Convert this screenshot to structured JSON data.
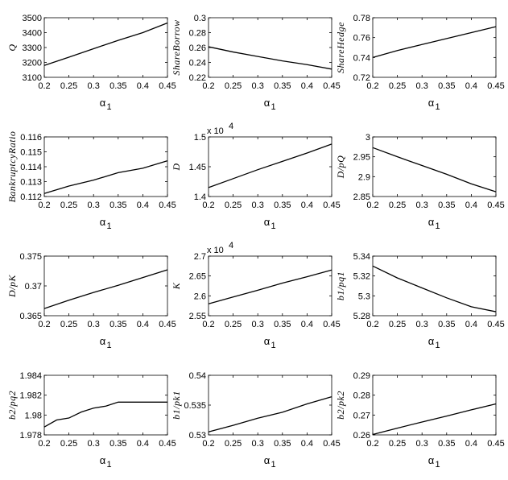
{
  "chart_data": [
    {
      "type": "line",
      "ylabel": "Q",
      "xlabel": "α",
      "xlabel_subscript": "1",
      "x": [
        0.2,
        0.25,
        0.3,
        0.35,
        0.4,
        0.45
      ],
      "values": [
        3180,
        3235,
        3292,
        3348,
        3400,
        3465
      ],
      "color": "#000000",
      "xlim": [
        0.2,
        0.45
      ],
      "xticks": [
        0.2,
        0.25,
        0.3,
        0.35,
        0.4,
        0.45
      ],
      "ylim": [
        3100,
        3500
      ],
      "yticks": [
        3100,
        3200,
        3300,
        3400,
        3500
      ]
    },
    {
      "type": "line",
      "ylabel": "ShareBorrow",
      "xlabel": "α",
      "xlabel_subscript": "1",
      "x": [
        0.2,
        0.25,
        0.3,
        0.35,
        0.4,
        0.45
      ],
      "values": [
        0.261,
        0.254,
        0.248,
        0.242,
        0.237,
        0.231
      ],
      "color": "#000000",
      "xlim": [
        0.2,
        0.45
      ],
      "xticks": [
        0.2,
        0.25,
        0.3,
        0.35,
        0.4,
        0.45
      ],
      "ylim": [
        0.22,
        0.3
      ],
      "yticks": [
        0.22,
        0.24,
        0.26,
        0.28,
        0.3
      ]
    },
    {
      "type": "line",
      "ylabel": "ShareHedge",
      "xlabel": "α",
      "xlabel_subscript": "1",
      "x": [
        0.2,
        0.25,
        0.3,
        0.35,
        0.4,
        0.45
      ],
      "values": [
        0.74,
        0.747,
        0.753,
        0.759,
        0.765,
        0.771
      ],
      "color": "#000000",
      "xlim": [
        0.2,
        0.45
      ],
      "xticks": [
        0.2,
        0.25,
        0.3,
        0.35,
        0.4,
        0.45
      ],
      "ylim": [
        0.72,
        0.78
      ],
      "yticks": [
        0.72,
        0.74,
        0.76,
        0.78
      ]
    },
    {
      "type": "line",
      "ylabel": "BankruptcyRatio",
      "xlabel": "α",
      "xlabel_subscript": "1",
      "x": [
        0.2,
        0.25,
        0.3,
        0.35,
        0.4,
        0.45
      ],
      "values": [
        0.1122,
        0.1127,
        0.1131,
        0.1136,
        0.1139,
        0.1144
      ],
      "color": "#000000",
      "xlim": [
        0.2,
        0.45
      ],
      "xticks": [
        0.2,
        0.25,
        0.3,
        0.35,
        0.4,
        0.45
      ],
      "ylim": [
        0.112,
        0.116
      ],
      "yticks": [
        0.112,
        0.113,
        0.114,
        0.115,
        0.116
      ]
    },
    {
      "type": "line",
      "ylabel": "D",
      "exponent_base": "x 10",
      "exponent_power": "4",
      "xlabel": "α",
      "xlabel_subscript": "1",
      "x": [
        0.2,
        0.25,
        0.3,
        0.35,
        0.4,
        0.45
      ],
      "values": [
        1.415,
        1.43,
        1.445,
        1.459,
        1.473,
        1.488
      ],
      "color": "#000000",
      "xlim": [
        0.2,
        0.45
      ],
      "xticks": [
        0.2,
        0.25,
        0.3,
        0.35,
        0.4,
        0.45
      ],
      "ylim": [
        1.4,
        1.5
      ],
      "yticks": [
        1.4,
        1.45,
        1.5
      ]
    },
    {
      "type": "line",
      "ylabel": "D/pQ",
      "xlabel": "α",
      "xlabel_subscript": "1",
      "x": [
        0.2,
        0.25,
        0.3,
        0.35,
        0.4,
        0.45
      ],
      "values": [
        2.973,
        2.95,
        2.928,
        2.906,
        2.882,
        2.862
      ],
      "color": "#000000",
      "xlim": [
        0.2,
        0.45
      ],
      "xticks": [
        0.2,
        0.25,
        0.3,
        0.35,
        0.4,
        0.45
      ],
      "ylim": [
        2.85,
        3
      ],
      "yticks": [
        2.85,
        2.9,
        2.95,
        3
      ]
    },
    {
      "type": "line",
      "ylabel": "D/pK",
      "xlabel": "α",
      "xlabel_subscript": "1",
      "x": [
        0.2,
        0.25,
        0.3,
        0.35,
        0.4,
        0.45
      ],
      "values": [
        0.3662,
        0.3676,
        0.3689,
        0.3701,
        0.3714,
        0.3727
      ],
      "color": "#000000",
      "xlim": [
        0.2,
        0.45
      ],
      "xticks": [
        0.2,
        0.25,
        0.3,
        0.35,
        0.4,
        0.45
      ],
      "ylim": [
        0.365,
        0.375
      ],
      "yticks": [
        0.365,
        0.37,
        0.375
      ]
    },
    {
      "type": "line",
      "ylabel": "K",
      "exponent_base": "x 10",
      "exponent_power": "4",
      "xlabel": "α",
      "xlabel_subscript": "1",
      "x": [
        0.2,
        0.25,
        0.3,
        0.35,
        0.4,
        0.45
      ],
      "values": [
        2.58,
        2.597,
        2.614,
        2.632,
        2.648,
        2.665
      ],
      "color": "#000000",
      "xlim": [
        0.2,
        0.45
      ],
      "xticks": [
        0.2,
        0.25,
        0.3,
        0.35,
        0.4,
        0.45
      ],
      "ylim": [
        2.55,
        2.7
      ],
      "yticks": [
        2.55,
        2.6,
        2.65,
        2.7
      ]
    },
    {
      "type": "line",
      "ylabel": "b1/pq1",
      "xlabel": "α",
      "xlabel_subscript": "1",
      "x": [
        0.2,
        0.25,
        0.3,
        0.35,
        0.4,
        0.45
      ],
      "values": [
        5.33,
        5.318,
        5.308,
        5.298,
        5.289,
        5.284
      ],
      "color": "#000000",
      "xlim": [
        0.2,
        0.45
      ],
      "xticks": [
        0.2,
        0.25,
        0.3,
        0.35,
        0.4,
        0.45
      ],
      "ylim": [
        5.28,
        5.34
      ],
      "yticks": [
        5.28,
        5.3,
        5.32,
        5.34
      ]
    },
    {
      "type": "line",
      "ylabel": "b2/pq2",
      "xlabel": "α",
      "xlabel_subscript": "1",
      "x": [
        0.2,
        0.225,
        0.25,
        0.275,
        0.3,
        0.325,
        0.35,
        0.4,
        0.45
      ],
      "values": [
        1.9788,
        1.9795,
        1.9797,
        1.9803,
        1.9807,
        1.9809,
        1.9813,
        1.9813,
        1.9813
      ],
      "color": "#000000",
      "xlim": [
        0.2,
        0.45
      ],
      "xticks": [
        0.2,
        0.25,
        0.3,
        0.35,
        0.4,
        0.45
      ],
      "ylim": [
        1.978,
        1.984
      ],
      "yticks": [
        1.978,
        1.98,
        1.982,
        1.984
      ]
    },
    {
      "type": "line",
      "ylabel": "b1/pk1",
      "xlabel": "α",
      "xlabel_subscript": "1",
      "x": [
        0.2,
        0.25,
        0.3,
        0.35,
        0.4,
        0.45
      ],
      "values": [
        0.5305,
        0.5316,
        0.5328,
        0.5338,
        0.5352,
        0.5364
      ],
      "color": "#000000",
      "xlim": [
        0.2,
        0.45
      ],
      "xticks": [
        0.2,
        0.25,
        0.3,
        0.35,
        0.4,
        0.45
      ],
      "ylim": [
        0.53,
        0.54
      ],
      "yticks": [
        0.53,
        0.535,
        0.54
      ]
    },
    {
      "type": "line",
      "ylabel": "b2/pk2",
      "xlabel": "α",
      "xlabel_subscript": "1",
      "x": [
        0.2,
        0.25,
        0.3,
        0.35,
        0.4,
        0.45
      ],
      "values": [
        0.2602,
        0.2634,
        0.2665,
        0.2695,
        0.2726,
        0.2756
      ],
      "color": "#000000",
      "xlim": [
        0.2,
        0.45
      ],
      "xticks": [
        0.2,
        0.25,
        0.3,
        0.35,
        0.4,
        0.45
      ],
      "ylim": [
        0.26,
        0.29
      ],
      "yticks": [
        0.26,
        0.27,
        0.28,
        0.29
      ]
    }
  ]
}
